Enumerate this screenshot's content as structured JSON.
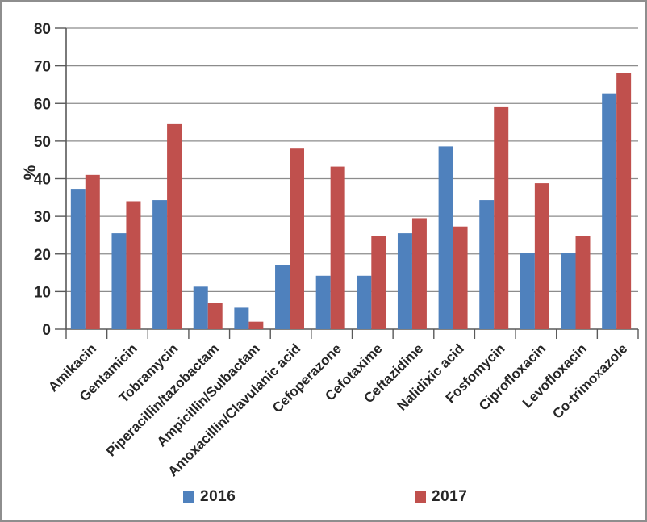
{
  "window": {
    "background_color": "#ffffff",
    "border_color": "#8e8e8e"
  },
  "chart_data": {
    "type": "bar",
    "title": "",
    "xlabel": "",
    "ylabel": "%",
    "ylim": [
      0,
      80
    ],
    "ytick_step": 10,
    "yticks": [
      0,
      10,
      20,
      30,
      40,
      50,
      60,
      70,
      80
    ],
    "grid": true,
    "legend_position": "bottom",
    "categories": [
      "Amikacin",
      "Gentamicin",
      "Tobramycin",
      "Piperacillin/tazobactam",
      "Ampicillin/Sulbactam",
      "Amoxacillin/Clavulanic acid",
      "Cefoperazone",
      "Cefotaxime",
      "Ceftazidime",
      "Nalidixic acid",
      "Fosfomycin",
      "Ciprofloxacin",
      "Levofloxacin",
      "Co-trimoxazole"
    ],
    "series": [
      {
        "name": "2016",
        "color": "#4F81BD",
        "values": [
          37.3,
          25.5,
          34.3,
          11.3,
          5.7,
          17.0,
          14.2,
          14.2,
          25.5,
          48.6,
          34.3,
          20.3,
          20.3,
          62.7
        ]
      },
      {
        "name": "2017",
        "color": "#C0504D",
        "values": [
          41.0,
          34.0,
          54.5,
          6.9,
          2.0,
          48.0,
          43.2,
          24.7,
          29.5,
          27.3,
          59.0,
          38.8,
          24.7,
          68.2
        ]
      }
    ]
  },
  "style": {
    "gridline_color": "#8c8c8c",
    "axis_color": "#595959",
    "tick_label_color": "#262626"
  },
  "legend": {
    "items": [
      {
        "label": "2016",
        "color": "#4F81BD"
      },
      {
        "label": "2017",
        "color": "#C0504D"
      }
    ]
  }
}
